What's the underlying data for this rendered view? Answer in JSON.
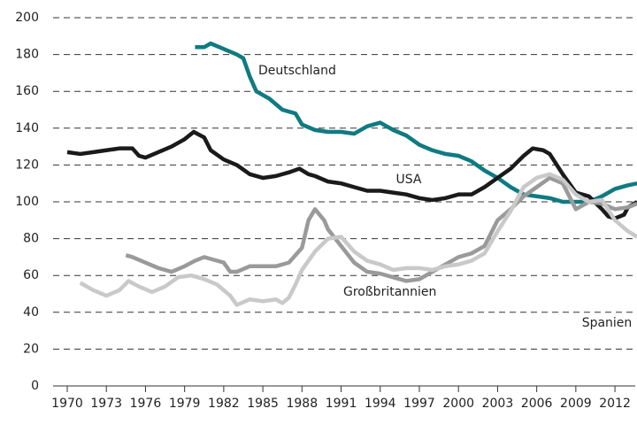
{
  "chart_data": {
    "type": "line",
    "xlim": [
      1969.6,
      2013.8
    ],
    "ylim": [
      0,
      200
    ],
    "yticks": [
      0,
      20,
      40,
      60,
      80,
      100,
      120,
      140,
      160,
      180,
      200
    ],
    "xticks": [
      1970,
      1973,
      1976,
      1979,
      1982,
      1985,
      1988,
      1991,
      1994,
      1997,
      2000,
      2003,
      2006,
      2009,
      2012
    ],
    "grid": true,
    "series": [
      {
        "name": "Deutschland",
        "color": "#0f7a82",
        "x": [
          1979.8,
          1980.5,
          1981,
          1982,
          1983,
          1983.5,
          1984,
          1984.5,
          1985.5,
          1986.5,
          1987.5,
          1988,
          1989,
          1990,
          1991,
          1992,
          1993,
          1994,
          1995,
          1996,
          1997,
          1998,
          1999,
          2000,
          2001,
          2002,
          2003,
          2004,
          2005,
          2006,
          2007,
          2008,
          2009,
          2010,
          2011,
          2012,
          2013,
          2013.7
        ],
        "values": [
          184,
          184,
          186,
          183,
          180,
          178,
          168,
          160,
          156,
          150,
          148,
          142,
          139,
          138,
          138,
          137,
          141,
          143,
          139,
          136,
          131,
          128,
          126,
          125,
          122,
          117,
          113,
          108,
          104,
          103,
          102,
          100,
          100,
          100,
          103,
          107,
          109,
          110
        ]
      },
      {
        "name": "USA",
        "color": "#1a1a1a",
        "x": [
          1970,
          1971,
          1972,
          1973,
          1974,
          1975,
          1975.5,
          1976,
          1977,
          1978,
          1979,
          1979.7,
          1980.5,
          1981,
          1982,
          1983,
          1984,
          1985,
          1986,
          1987,
          1987.8,
          1988.5,
          1989,
          1990,
          1991,
          1992,
          1993,
          1994,
          1995,
          1996,
          1997,
          1998,
          1999,
          2000,
          2001,
          2002,
          2003,
          2004,
          2005,
          2005.7,
          2006.5,
          2007,
          2008,
          2009,
          2010,
          2011,
          2011.5,
          2012,
          2012.7,
          2013,
          2013.7
        ],
        "values": [
          127,
          126,
          127,
          128,
          129,
          129,
          125,
          124,
          127,
          130,
          134,
          138,
          135,
          128,
          123,
          120,
          115,
          113,
          114,
          116,
          118,
          115,
          114,
          111,
          110,
          108,
          106,
          106,
          105,
          104,
          102,
          101,
          102,
          104,
          104,
          108,
          113,
          118,
          125,
          129,
          128,
          126,
          115,
          105,
          103,
          96,
          92,
          91,
          93,
          97,
          100
        ]
      },
      {
        "name": "Großbritannien",
        "color": "#9a9a9a",
        "x": [
          1974.5,
          1975,
          1976,
          1977,
          1978,
          1979,
          1979.8,
          1980.5,
          1981,
          1982,
          1982.5,
          1983,
          1984,
          1985,
          1986,
          1987,
          1988,
          1988.5,
          1989,
          1989.7,
          1990,
          1991,
          1992,
          1993,
          1994,
          1995,
          1996,
          1997,
          1998,
          1999,
          2000,
          2001,
          2002,
          2003,
          2004,
          2005,
          2006,
          2007,
          2008,
          2009,
          2010,
          2011,
          2012,
          2013,
          2013.7
        ],
        "values": [
          71,
          70,
          67,
          64,
          62,
          65,
          68,
          70,
          69,
          67,
          62,
          62,
          65,
          65,
          65,
          67,
          75,
          90,
          96,
          90,
          85,
          76,
          67,
          62,
          61,
          59,
          57,
          58,
          62,
          66,
          70,
          72,
          76,
          90,
          96,
          103,
          108,
          113,
          110,
          96,
          100,
          99,
          96,
          97,
          99
        ]
      },
      {
        "name": "Spanien",
        "color": "#c9c9c9",
        "x": [
          1971,
          1972,
          1973,
          1974,
          1974.7,
          1975.5,
          1976.5,
          1977.5,
          1978.5,
          1979.5,
          1980.5,
          1981.5,
          1982.5,
          1983,
          1984,
          1985,
          1986,
          1986.5,
          1987,
          1987.5,
          1988,
          1989,
          1990,
          1991,
          1992,
          1993,
          1994,
          1995,
          1996,
          1997,
          1998,
          1999,
          2000,
          2001,
          2002,
          2003,
          2004,
          2005,
          2006,
          2007,
          2008,
          2009,
          2010,
          2011,
          2012,
          2013,
          2013.7
        ],
        "values": [
          56,
          52,
          49,
          52,
          57,
          54,
          51,
          54,
          59,
          60,
          58,
          55,
          49,
          44,
          47,
          46,
          47,
          45,
          48,
          55,
          63,
          73,
          80,
          81,
          73,
          68,
          66,
          63,
          64,
          64,
          63,
          65,
          66,
          68,
          72,
          84,
          95,
          108,
          113,
          115,
          112,
          104,
          100,
          101,
          90,
          84,
          81
        ]
      }
    ]
  }
}
